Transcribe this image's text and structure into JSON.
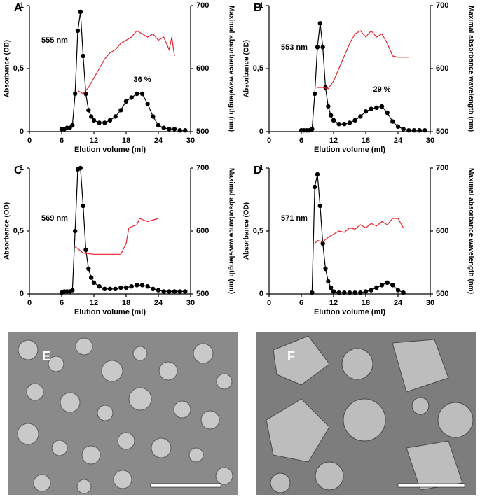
{
  "chart_data": [
    {
      "type": "line",
      "title": "A",
      "xlabel": "Elution volume (ml)",
      "ylabel": "Absorbance (OD)",
      "y2label": "Maximal absorbance wavelength (nm)",
      "annotations": [
        "555 nm",
        "36 %"
      ],
      "xlim": [
        0,
        30
      ],
      "xticks": [
        0,
        6,
        12,
        18,
        24,
        30
      ],
      "ylim": [
        0,
        1
      ],
      "yticks": [
        0,
        {
          "value": 0.5,
          "label": "0,5"
        },
        1
      ],
      "y2lim": [
        500,
        700
      ],
      "y2ticks": [
        500,
        600,
        700
      ],
      "series": [
        {
          "color": "#000000",
          "marker": "circle",
          "x": [
            6,
            6.5,
            7,
            7.5,
            8,
            8.5,
            9,
            9.5,
            10,
            10.5,
            11,
            11.5,
            12,
            13,
            14,
            15,
            16,
            17,
            18,
            19,
            20,
            21,
            22,
            23,
            24,
            25,
            26,
            27,
            28,
            29
          ],
          "values": [
            0.02,
            0.02,
            0.03,
            0.03,
            0.05,
            0.3,
            0.8,
            0.95,
            0.6,
            0.3,
            0.17,
            0.12,
            0.09,
            0.07,
            0.07,
            0.09,
            0.12,
            0.17,
            0.24,
            0.27,
            0.3,
            0.3,
            0.22,
            0.12,
            0.05,
            0.03,
            0.02,
            0.02,
            0.01,
            0.01
          ]
        },
        {
          "color": "#e8202a",
          "axis": "y2",
          "x": [
            9,
            10,
            11,
            12,
            13,
            14,
            15,
            16,
            17,
            18,
            19,
            20,
            21,
            22,
            23,
            24,
            25,
            26,
            26.5,
            27
          ],
          "values": [
            565,
            560,
            570,
            585,
            600,
            615,
            625,
            630,
            640,
            645,
            650,
            660,
            655,
            650,
            655,
            645,
            650,
            630,
            650,
            620
          ]
        }
      ]
    },
    {
      "type": "line",
      "title": "B",
      "xlabel": "Elution volume (ml)",
      "ylabel": "Absorbance (OD)",
      "y2label": "Maximal absorbance wavelength (nm)",
      "annotations": [
        "553 nm",
        "29 %"
      ],
      "xlim": [
        0,
        30
      ],
      "xticks": [
        0,
        6,
        12,
        18,
        24,
        30
      ],
      "ylim": [
        0,
        1
      ],
      "yticks": [
        0,
        {
          "value": 0.5,
          "label": "0,5"
        },
        1
      ],
      "y2lim": [
        500,
        700
      ],
      "y2ticks": [
        500,
        600,
        700
      ],
      "series": [
        {
          "color": "#000000",
          "marker": "circle",
          "x": [
            6,
            6.5,
            7,
            7.5,
            8,
            8.5,
            9,
            9.5,
            10,
            10.5,
            11,
            11.5,
            12,
            13,
            14,
            15,
            16,
            17,
            18,
            19,
            20,
            21,
            22,
            23,
            24,
            25,
            26,
            27,
            28,
            29
          ],
          "values": [
            0.01,
            0.01,
            0.01,
            0.01,
            0.02,
            0.3,
            0.67,
            0.86,
            0.67,
            0.35,
            0.2,
            0.13,
            0.09,
            0.06,
            0.06,
            0.07,
            0.09,
            0.12,
            0.16,
            0.18,
            0.19,
            0.2,
            0.15,
            0.08,
            0.04,
            0.02,
            0.01,
            0.01,
            0.01,
            0.01
          ]
        },
        {
          "color": "#e8202a",
          "axis": "y2",
          "x": [
            9,
            10,
            11,
            12,
            13,
            14,
            15,
            16,
            17,
            18,
            19,
            20,
            21,
            22,
            23,
            24,
            25,
            26
          ],
          "values": [
            570,
            570,
            568,
            580,
            600,
            620,
            640,
            655,
            660,
            650,
            660,
            650,
            655,
            640,
            620,
            618,
            618,
            618
          ]
        }
      ]
    },
    {
      "type": "line",
      "title": "C",
      "xlabel": "Elution volume (ml)",
      "ylabel": "Absorbance (OD)",
      "y2label": "Maximal absorbance wavelength (nm)",
      "annotations": [
        "569 nm"
      ],
      "xlim": [
        0,
        30
      ],
      "xticks": [
        0,
        6,
        12,
        18,
        24,
        30
      ],
      "ylim": [
        0,
        1
      ],
      "yticks": [
        0,
        {
          "value": 0.5,
          "label": "0,5"
        },
        1
      ],
      "y2lim": [
        500,
        700
      ],
      "y2ticks": [
        500,
        600,
        700
      ],
      "series": [
        {
          "color": "#000000",
          "marker": "circle",
          "x": [
            6,
            6.5,
            7,
            7.5,
            8,
            8.5,
            9,
            9.5,
            10,
            10.5,
            11,
            11.5,
            12,
            13,
            14,
            15,
            16,
            17,
            18,
            19,
            20,
            21,
            22,
            23,
            24,
            25,
            26,
            27,
            28,
            29
          ],
          "values": [
            0.01,
            0.02,
            0.02,
            0.02,
            0.03,
            0.5,
            0.99,
            1,
            0.7,
            0.35,
            0.2,
            0.13,
            0.09,
            0.06,
            0.04,
            0.04,
            0.04,
            0.05,
            0.05,
            0.06,
            0.07,
            0.07,
            0.06,
            0.04,
            0.03,
            0.02,
            0.02,
            0.02,
            0.02,
            0.02
          ]
        },
        {
          "color": "#e8202a",
          "axis": "y2",
          "x": [
            8.5,
            9,
            10,
            12,
            14,
            16,
            17,
            18,
            18.5,
            20,
            20.5,
            22,
            24
          ],
          "values": [
            575,
            572,
            565,
            563,
            563,
            563,
            563,
            580,
            605,
            610,
            620,
            615,
            620
          ]
        }
      ]
    },
    {
      "type": "line",
      "title": "D",
      "xlabel": "Elution volume (ml)",
      "ylabel": "Absorbance (OD)",
      "y2label": "Maximal absorbance wavelength (nm)",
      "annotations": [
        "571 nm"
      ],
      "xlim": [
        0,
        30
      ],
      "xticks": [
        0,
        6,
        12,
        18,
        24,
        30
      ],
      "ylim": [
        0,
        1
      ],
      "yticks": [
        0,
        {
          "value": 0.5,
          "label": "0,5"
        },
        1
      ],
      "y2lim": [
        500,
        700
      ],
      "y2ticks": [
        500,
        600,
        700
      ],
      "series": [
        {
          "color": "#000000",
          "marker": "circle",
          "x": [
            8,
            8.5,
            9,
            9.5,
            10,
            10.5,
            11,
            11.5,
            12,
            13,
            14,
            15,
            16,
            17,
            18,
            19,
            20,
            21,
            22,
            23,
            24,
            25
          ],
          "values": [
            0.01,
            0.85,
            0.95,
            0.7,
            0.4,
            0.2,
            0.1,
            0.05,
            0.02,
            0.01,
            0.01,
            0.01,
            0.01,
            0.01,
            0.02,
            0.03,
            0.05,
            0.07,
            0.09,
            0.07,
            0.03,
            0.01
          ]
        },
        {
          "color": "#e8202a",
          "axis": "y2",
          "x": [
            8.5,
            9,
            10,
            11,
            12,
            13,
            14,
            15,
            16,
            17,
            18,
            19,
            20,
            21,
            22,
            23,
            24,
            25
          ],
          "values": [
            580,
            585,
            583,
            590,
            595,
            600,
            598,
            605,
            603,
            610,
            605,
            612,
            608,
            615,
            610,
            620,
            620,
            605
          ]
        }
      ]
    }
  ],
  "images": [
    {
      "label": "E"
    },
    {
      "label": "F"
    }
  ]
}
